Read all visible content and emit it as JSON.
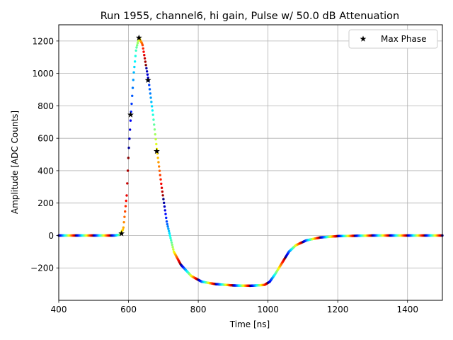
{
  "chart_data": {
    "type": "scatter",
    "title": "Run 1955, channel6, hi gain, Pulse w/ 50.0 dB Attenuation",
    "xlabel": "Time [ns]",
    "ylabel": "Amplitude [ADC Counts]",
    "xlim": [
      400,
      1500
    ],
    "ylim": [
      -400,
      1300
    ],
    "xticks": [
      400,
      600,
      800,
      1000,
      1200,
      1400
    ],
    "yticks": [
      -200,
      0,
      200,
      400,
      600,
      800,
      1000,
      1200
    ],
    "ytick_labels": [
      "−200",
      "0",
      "200",
      "400",
      "600",
      "800",
      "1000",
      "1200"
    ],
    "grid": true,
    "legend": {
      "position": "upper right",
      "entries": [
        "Max Phase"
      ]
    },
    "pulse_series": {
      "name": "pulse samples (phase colored, jet colormap)",
      "x_range": [
        400,
        1500
      ],
      "baseline": 0,
      "peak": {
        "x": 630,
        "y": 1220
      },
      "undershoot_min": -312,
      "shape_points": [
        [
          400,
          0
        ],
        [
          560,
          0
        ],
        [
          575,
          5
        ],
        [
          585,
          40
        ],
        [
          595,
          250
        ],
        [
          600,
          500
        ],
        [
          607,
          750
        ],
        [
          615,
          1000
        ],
        [
          622,
          1150
        ],
        [
          630,
          1220
        ],
        [
          640,
          1180
        ],
        [
          650,
          1050
        ],
        [
          658,
          950
        ],
        [
          670,
          750
        ],
        [
          682,
          520
        ],
        [
          695,
          300
        ],
        [
          710,
          80
        ],
        [
          730,
          -100
        ],
        [
          750,
          -180
        ],
        [
          780,
          -250
        ],
        [
          810,
          -285
        ],
        [
          850,
          -300
        ],
        [
          900,
          -308
        ],
        [
          950,
          -310
        ],
        [
          990,
          -305
        ],
        [
          1005,
          -285
        ],
        [
          1020,
          -240
        ],
        [
          1040,
          -170
        ],
        [
          1060,
          -100
        ],
        [
          1080,
          -60
        ],
        [
          1110,
          -30
        ],
        [
          1150,
          -12
        ],
        [
          1200,
          -4
        ],
        [
          1300,
          0
        ],
        [
          1500,
          0
        ]
      ]
    },
    "max_phase_series": {
      "name": "Max Phase",
      "marker": "star",
      "x": [
        580,
        606,
        630,
        656,
        681
      ],
      "y": [
        12,
        745,
        1220,
        958,
        520
      ]
    }
  }
}
